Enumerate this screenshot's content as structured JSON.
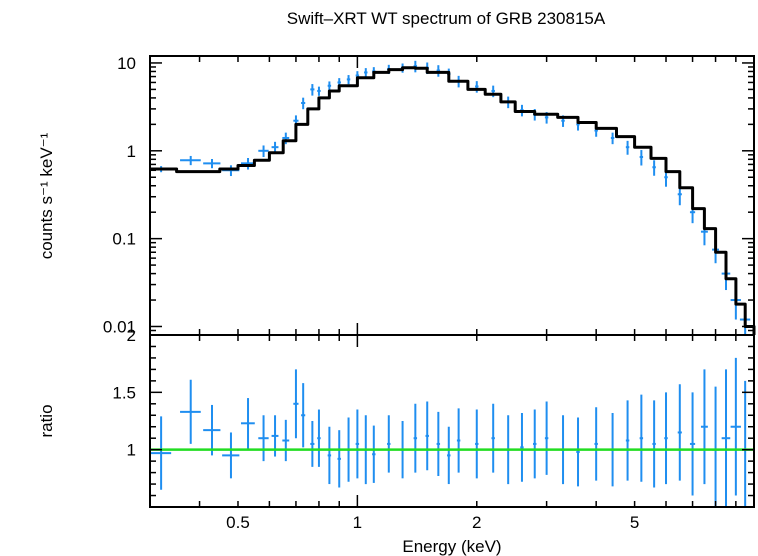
{
  "title": "Swift–XRT WT spectrum of GRB 230815A",
  "colors": {
    "data": "#1f8ef0",
    "model": "#000000",
    "ratio_unity": "#22dd22",
    "axes": "#000000"
  },
  "chart_data": [
    {
      "type": "scatter",
      "panel": "spectrum",
      "title": "Swift–XRT WT spectrum of GRB 230815A",
      "xlabel": "",
      "ylabel": "counts s⁻¹ keV⁻¹",
      "xscale": "log",
      "yscale": "log",
      "xlim": [
        0.3,
        10
      ],
      "ylim": [
        0.008,
        12
      ],
      "yticks": [
        0.01,
        0.1,
        1,
        10
      ],
      "ytick_labels": [
        "0.01",
        "0.1",
        "1",
        "10"
      ],
      "grid": false,
      "series": [
        {
          "style": "points-with-errorbars",
          "x": [
            0.32,
            0.38,
            0.43,
            0.48,
            0.53,
            0.58,
            0.62,
            0.66,
            0.7,
            0.73,
            0.77,
            0.8,
            0.85,
            0.9,
            0.95,
            1.0,
            1.05,
            1.1,
            1.2,
            1.3,
            1.4,
            1.5,
            1.6,
            1.7,
            1.8,
            2.0,
            2.2,
            2.4,
            2.6,
            2.8,
            3.0,
            3.3,
            3.6,
            4.0,
            4.4,
            4.8,
            5.2,
            5.6,
            6.0,
            6.5,
            7.0,
            7.5,
            8.0,
            8.5,
            9.0,
            9.5
          ],
          "y": [
            0.62,
            0.78,
            0.72,
            0.6,
            0.72,
            1.0,
            1.1,
            1.4,
            2.2,
            3.5,
            5.0,
            4.8,
            5.5,
            6.0,
            6.5,
            7.2,
            7.8,
            8.0,
            8.5,
            8.8,
            9.2,
            8.8,
            8.2,
            7.5,
            6.2,
            5.4,
            4.8,
            3.6,
            2.9,
            2.6,
            2.4,
            2.2,
            2.0,
            1.7,
            1.4,
            1.1,
            0.85,
            0.65,
            0.5,
            0.32,
            0.2,
            0.12,
            0.075,
            0.04,
            0.02,
            0.012
          ],
          "xerr_frac": [
            0.06,
            0.06,
            0.05,
            0.05,
            0.04,
            0.03,
            0.02,
            0.02,
            0.015,
            0.012,
            0.012,
            0.01,
            0.01,
            0.01,
            0.01,
            0.01,
            0.01,
            0.01,
            0.01,
            0.01,
            0.01,
            0.01,
            0.01,
            0.01,
            0.01,
            0.01,
            0.01,
            0.01,
            0.01,
            0.01,
            0.01,
            0.01,
            0.01,
            0.01,
            0.01,
            0.01,
            0.01,
            0.01,
            0.01,
            0.012,
            0.015,
            0.02,
            0.02,
            0.025,
            0.03,
            0.03
          ],
          "yerr_frac": [
            0.08,
            0.12,
            0.12,
            0.14,
            0.15,
            0.15,
            0.15,
            0.15,
            0.15,
            0.15,
            0.15,
            0.12,
            0.12,
            0.12,
            0.12,
            0.12,
            0.12,
            0.12,
            0.12,
            0.12,
            0.15,
            0.15,
            0.15,
            0.15,
            0.15,
            0.15,
            0.15,
            0.15,
            0.15,
            0.15,
            0.15,
            0.15,
            0.15,
            0.15,
            0.15,
            0.18,
            0.2,
            0.2,
            0.22,
            0.25,
            0.25,
            0.3,
            0.3,
            0.35,
            0.4,
            0.45
          ]
        },
        {
          "style": "step-line",
          "x": [
            0.3,
            0.35,
            0.4,
            0.45,
            0.5,
            0.55,
            0.6,
            0.65,
            0.7,
            0.75,
            0.8,
            0.85,
            0.9,
            1.0,
            1.1,
            1.2,
            1.3,
            1.4,
            1.5,
            1.7,
            1.9,
            2.1,
            2.3,
            2.5,
            2.8,
            3.2,
            3.6,
            4.0,
            4.5,
            5.0,
            5.5,
            6.0,
            6.5,
            7.0,
            7.5,
            8.0,
            8.5,
            9.0,
            9.5,
            10
          ],
          "y": [
            0.62,
            0.58,
            0.58,
            0.62,
            0.68,
            0.78,
            0.95,
            1.3,
            2.0,
            3.0,
            4.0,
            4.8,
            5.5,
            6.8,
            7.8,
            8.4,
            8.8,
            8.7,
            7.8,
            6.2,
            5.0,
            4.4,
            3.6,
            2.8,
            2.6,
            2.4,
            2.1,
            1.8,
            1.45,
            1.1,
            0.82,
            0.58,
            0.38,
            0.22,
            0.13,
            0.07,
            0.035,
            0.018,
            0.01,
            0.008
          ]
        }
      ]
    },
    {
      "type": "scatter",
      "panel": "ratio",
      "xlabel": "Energy (keV)",
      "ylabel": "ratio",
      "xscale": "log",
      "yscale": "linear",
      "xlim": [
        0.3,
        10
      ],
      "ylim": [
        0.5,
        2.0
      ],
      "xticks": [
        0.5,
        1,
        2,
        5
      ],
      "xtick_labels": [
        "0.5",
        "1",
        "2",
        "5"
      ],
      "yticks": [
        1,
        1.5,
        2
      ],
      "ytick_labels": [
        "1",
        "1.5",
        "2"
      ],
      "reference_line": 1,
      "series": [
        {
          "style": "points-with-errorbars",
          "x": [
            0.32,
            0.38,
            0.43,
            0.48,
            0.53,
            0.58,
            0.62,
            0.66,
            0.7,
            0.73,
            0.77,
            0.8,
            0.85,
            0.9,
            0.95,
            1.0,
            1.05,
            1.1,
            1.2,
            1.3,
            1.4,
            1.5,
            1.6,
            1.7,
            1.8,
            2.0,
            2.2,
            2.4,
            2.6,
            2.8,
            3.0,
            3.3,
            3.6,
            4.0,
            4.4,
            4.8,
            5.2,
            5.6,
            6.0,
            6.5,
            7.0,
            7.5,
            8.0,
            8.5,
            9.0,
            9.5
          ],
          "y": [
            0.97,
            1.33,
            1.17,
            0.95,
            1.23,
            1.1,
            1.12,
            1.08,
            1.4,
            1.3,
            1.05,
            1.1,
            0.95,
            0.92,
            1.0,
            1.05,
            1.0,
            0.96,
            1.05,
            1.0,
            1.1,
            1.12,
            1.05,
            0.95,
            1.08,
            1.05,
            1.1,
            1.0,
            1.02,
            1.05,
            1.1,
            1.0,
            0.98,
            1.05,
            1.0,
            1.08,
            1.1,
            1.05,
            1.1,
            1.15,
            1.05,
            1.2,
            1.0,
            1.1,
            1.2,
            1.0
          ],
          "xerr_frac": [
            0.06,
            0.06,
            0.05,
            0.05,
            0.04,
            0.03,
            0.02,
            0.02,
            0.015,
            0.012,
            0.012,
            0.01,
            0.01,
            0.01,
            0.01,
            0.01,
            0.01,
            0.01,
            0.01,
            0.01,
            0.01,
            0.01,
            0.01,
            0.01,
            0.01,
            0.01,
            0.01,
            0.01,
            0.01,
            0.01,
            0.01,
            0.01,
            0.01,
            0.01,
            0.01,
            0.01,
            0.01,
            0.01,
            0.01,
            0.012,
            0.015,
            0.02,
            0.02,
            0.025,
            0.03,
            0.03
          ],
          "yerr": [
            0.32,
            0.28,
            0.22,
            0.2,
            0.22,
            0.2,
            0.18,
            0.18,
            0.3,
            0.28,
            0.2,
            0.25,
            0.25,
            0.25,
            0.28,
            0.3,
            0.3,
            0.25,
            0.25,
            0.25,
            0.3,
            0.3,
            0.28,
            0.25,
            0.28,
            0.3,
            0.3,
            0.3,
            0.3,
            0.3,
            0.32,
            0.3,
            0.3,
            0.32,
            0.32,
            0.35,
            0.38,
            0.38,
            0.4,
            0.42,
            0.45,
            0.5,
            0.55,
            0.6,
            0.6,
            0.6
          ]
        }
      ]
    }
  ]
}
